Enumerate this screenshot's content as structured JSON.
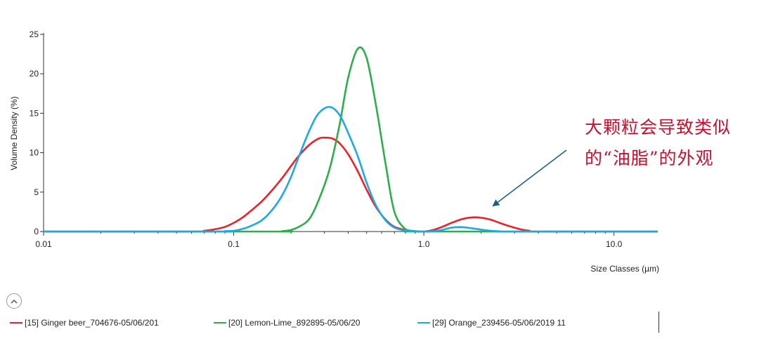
{
  "chart_data": {
    "type": "line",
    "title": "",
    "xlabel": "Size Classes (µm)",
    "ylabel": "Volume Density (%)",
    "xscale": "log",
    "xlim": [
      0.01,
      17
    ],
    "ylim": [
      0,
      25
    ],
    "x_ticks": [
      "0.01",
      "0.1",
      "1.0",
      "10.0"
    ],
    "y_ticks": [
      "0",
      "5",
      "10",
      "15",
      "20",
      "25"
    ],
    "grid": false,
    "legend_position": "bottom",
    "series": [
      {
        "name": "[15] Ginger beer_704676-05/06/201",
        "color": "#e8232a",
        "x": [
          0.01,
          0.06,
          0.07,
          0.08,
          0.09,
          0.1,
          0.11,
          0.12,
          0.14,
          0.16,
          0.18,
          0.2,
          0.22,
          0.25,
          0.28,
          0.3,
          0.33,
          0.36,
          0.4,
          0.45,
          0.5,
          0.56,
          0.63,
          0.7,
          0.8,
          0.9,
          1.0,
          1.12,
          1.25,
          1.4,
          1.6,
          1.8,
          2.0,
          2.25,
          2.5,
          2.8,
          3.2,
          3.6,
          4.0,
          17
        ],
        "y": [
          0,
          0,
          0.1,
          0.3,
          0.6,
          1.1,
          1.7,
          2.4,
          3.8,
          5.3,
          6.8,
          8.3,
          9.6,
          11.0,
          11.8,
          11.9,
          11.8,
          11.2,
          9.8,
          7.6,
          5.3,
          3.1,
          1.5,
          0.6,
          0.2,
          0.05,
          0,
          0.2,
          0.6,
          1.1,
          1.6,
          1.8,
          1.75,
          1.5,
          1.1,
          0.7,
          0.3,
          0.1,
          0,
          0
        ]
      },
      {
        "name": "[20] Lemon-Lime_892895-05/06/20",
        "color": "#2eae4a",
        "x": [
          0.01,
          0.16,
          0.18,
          0.2,
          0.22,
          0.25,
          0.28,
          0.32,
          0.36,
          0.4,
          0.45,
          0.5,
          0.56,
          0.63,
          0.7,
          0.8,
          0.9,
          1.0,
          17
        ],
        "y": [
          0,
          0,
          0.05,
          0.2,
          0.6,
          1.6,
          4.0,
          8.0,
          13.5,
          19.5,
          23.2,
          22.0,
          16.0,
          8.5,
          2.5,
          0.3,
          0.05,
          0,
          0
        ]
      },
      {
        "name": "[29] Orange_239456-05/06/2019 11",
        "color": "#1ea8e6",
        "x": [
          0.01,
          0.08,
          0.09,
          0.1,
          0.11,
          0.12,
          0.14,
          0.16,
          0.18,
          0.2,
          0.22,
          0.25,
          0.28,
          0.32,
          0.36,
          0.4,
          0.45,
          0.5,
          0.56,
          0.63,
          0.7,
          0.8,
          0.9,
          1.0,
          1.12,
          1.25,
          1.4,
          1.6,
          1.8,
          2.0,
          2.25,
          2.5,
          2.8,
          17
        ],
        "y": [
          0,
          0,
          0.05,
          0.1,
          0.3,
          0.6,
          1.4,
          2.8,
          4.6,
          6.9,
          9.5,
          12.8,
          15.0,
          15.8,
          14.8,
          12.5,
          9.5,
          6.2,
          3.3,
          1.4,
          0.5,
          0.1,
          0.02,
          0,
          0.05,
          0.2,
          0.5,
          0.55,
          0.4,
          0.25,
          0.1,
          0.03,
          0,
          0
        ]
      }
    ],
    "annotations": [
      {
        "lines": [
          "大颗粒会导致类似",
          "的“油脂”的外观"
        ],
        "color": "#c8102e",
        "arrow_color": "#1f5f8a"
      }
    ]
  }
}
